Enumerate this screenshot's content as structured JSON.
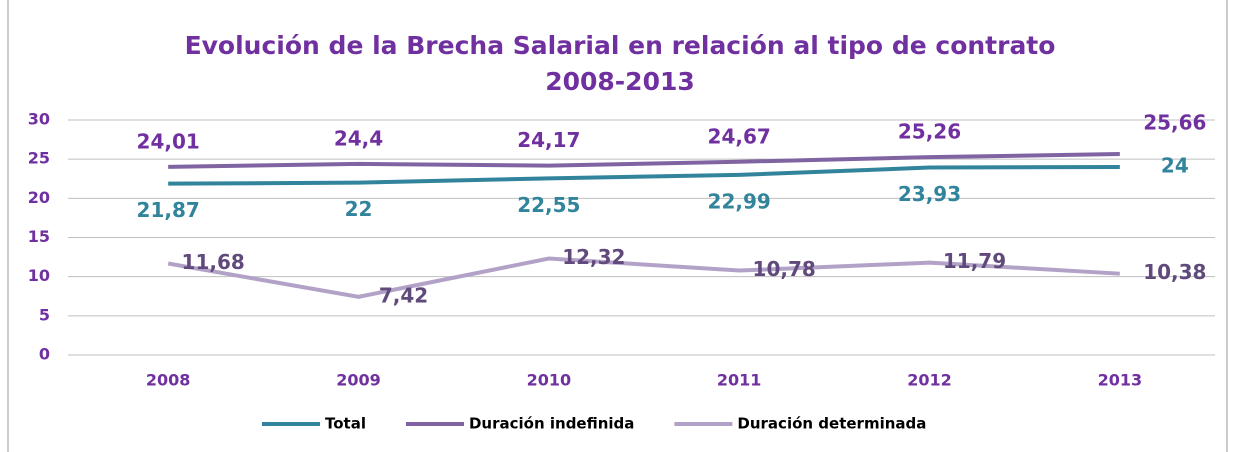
{
  "chart_data": {
    "type": "line",
    "title": "Evolución de la Brecha Salarial en relación al tipo de contrato 2008-2013",
    "categories": [
      "2008",
      "2009",
      "2010",
      "2011",
      "2012",
      "2013"
    ],
    "ylim": [
      0,
      30
    ],
    "yticks": [
      0,
      5,
      10,
      15,
      20,
      25,
      30
    ],
    "grid": true,
    "legend": "bottom",
    "series": [
      {
        "name": "Total",
        "color": "#31849b",
        "values": [
          21.87,
          22,
          22.55,
          22.99,
          23.93,
          24
        ],
        "value_labels": [
          "21,87",
          "22",
          "22,55",
          "22,99",
          "23,93",
          "24"
        ]
      },
      {
        "name": "Duración indefinida",
        "color": "#8064a2",
        "values": [
          24.01,
          24.4,
          24.17,
          24.67,
          25.26,
          25.66
        ],
        "value_labels": [
          "24,01",
          "24,4",
          "24,17",
          "24,67",
          "25,26",
          "25,66"
        ]
      },
      {
        "name": "Duración determinada",
        "color": "#b3a2c7",
        "values": [
          11.68,
          7.42,
          12.32,
          10.78,
          11.79,
          10.38
        ],
        "value_labels": [
          "11,68",
          "7,42",
          "12,32",
          "10,78",
          "11,79",
          "10,38"
        ]
      }
    ]
  }
}
